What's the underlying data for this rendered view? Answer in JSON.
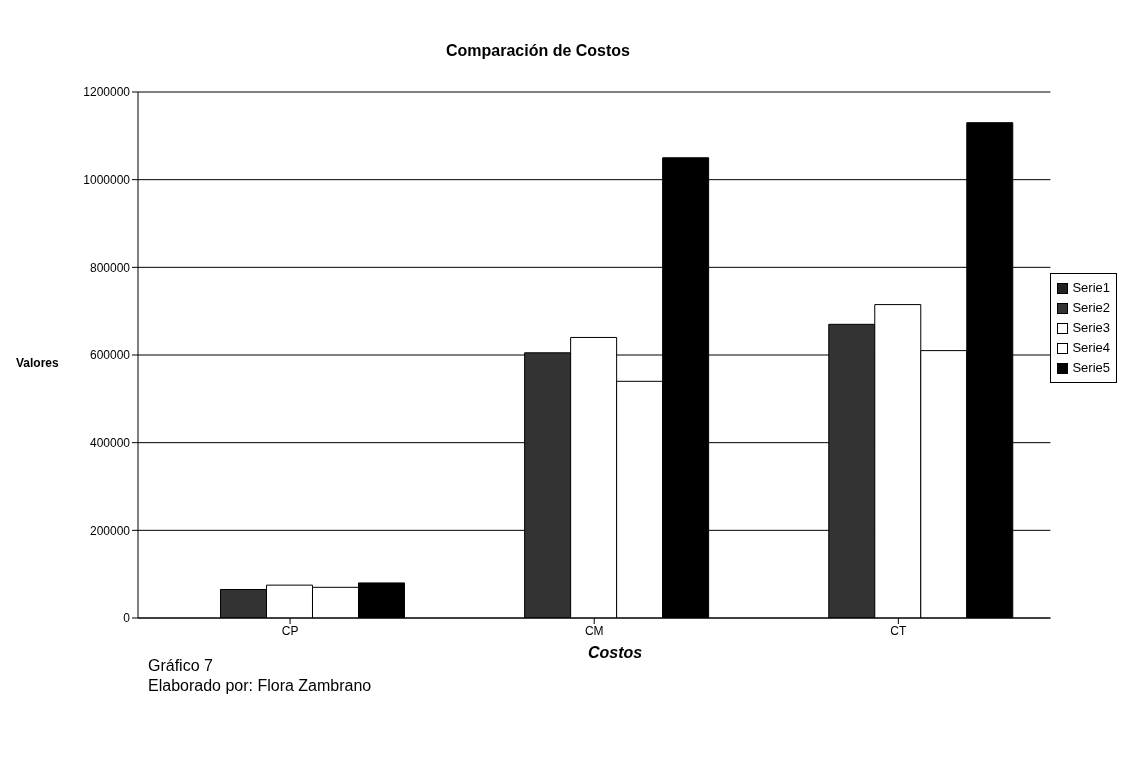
{
  "chart_data": {
    "type": "bar",
    "title": "Comparación de Costos",
    "xlabel": "Costos",
    "ylabel": "Valores",
    "categories": [
      "CP",
      "CM",
      "CT"
    ],
    "series": [
      {
        "name": "Serie1",
        "color": "#222222",
        "values": [
          0,
          0,
          0
        ]
      },
      {
        "name": "Serie2",
        "color": "#333333",
        "values": [
          65000,
          605000,
          670000
        ]
      },
      {
        "name": "Serie3",
        "color": "#ffffff",
        "values": [
          75000,
          640000,
          715000
        ]
      },
      {
        "name": "Serie4",
        "color": "#ffffff",
        "values": [
          70000,
          540000,
          610000
        ]
      },
      {
        "name": "Serie5",
        "color": "#000000",
        "values": [
          80000,
          1050000,
          1130000
        ]
      }
    ],
    "ylim": [
      0,
      1200000
    ],
    "yticks": [
      0,
      200000,
      400000,
      600000,
      800000,
      1000000,
      1200000
    ],
    "grid": "y",
    "legend": "right",
    "annotations": [
      "Gráfico 7",
      "Elaborado por: Flora Zambrano"
    ]
  }
}
